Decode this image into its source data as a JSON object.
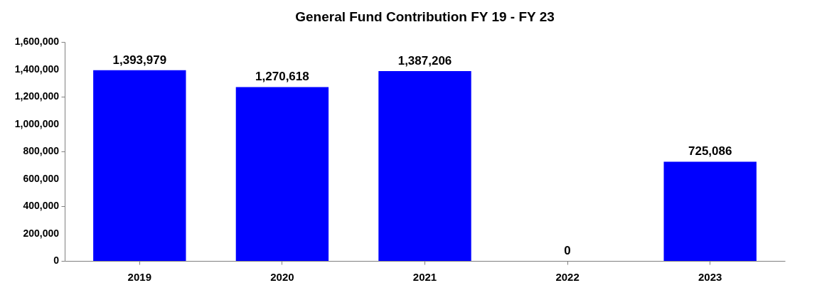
{
  "chart_data": {
    "type": "bar",
    "title": "General Fund Contribution FY 19 - FY 23",
    "categories": [
      "2019",
      "2020",
      "2021",
      "2022",
      "2023"
    ],
    "values": [
      1393979,
      1270618,
      1387206,
      0,
      725086
    ],
    "value_labels": [
      "1,393,979",
      "1,270,618",
      "1,387,206",
      "0",
      "725,086"
    ],
    "color": "#0000ff",
    "ylim": [
      0,
      1600000
    ],
    "yticks": [
      {
        "value": 0,
        "label": "0"
      },
      {
        "value": 200000,
        "label": "200,000"
      },
      {
        "value": 400000,
        "label": "400,000"
      },
      {
        "value": 600000,
        "label": "600,000"
      },
      {
        "value": 800000,
        "label": "800,000"
      },
      {
        "value": 1000000,
        "label": "1,000,000"
      },
      {
        "value": 1200000,
        "label": "1,200,000"
      },
      {
        "value": 1400000,
        "label": "1,400,000"
      },
      {
        "value": 1600000,
        "label": "1,600,000"
      }
    ],
    "grid": false,
    "data_labels": true
  }
}
